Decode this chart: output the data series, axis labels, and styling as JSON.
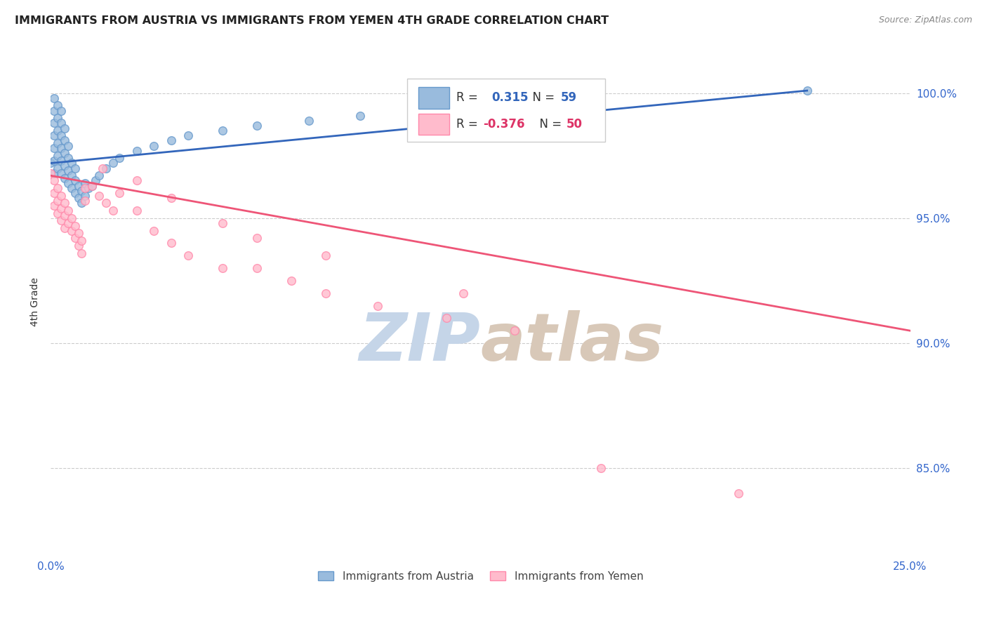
{
  "title": "IMMIGRANTS FROM AUSTRIA VS IMMIGRANTS FROM YEMEN 4TH GRADE CORRELATION CHART",
  "source": "Source: ZipAtlas.com",
  "ylabel": "4th Grade",
  "ytick_labels": [
    "85.0%",
    "90.0%",
    "95.0%",
    "100.0%"
  ],
  "ytick_values": [
    0.85,
    0.9,
    0.95,
    1.0
  ],
  "xlim": [
    0.0,
    0.25
  ],
  "ylim": [
    0.815,
    1.018
  ],
  "austria_scatter_x": [
    0.0,
    0.001,
    0.001,
    0.001,
    0.001,
    0.001,
    0.001,
    0.001,
    0.002,
    0.002,
    0.002,
    0.002,
    0.002,
    0.002,
    0.003,
    0.003,
    0.003,
    0.003,
    0.003,
    0.003,
    0.004,
    0.004,
    0.004,
    0.004,
    0.004,
    0.005,
    0.005,
    0.005,
    0.005,
    0.006,
    0.006,
    0.006,
    0.007,
    0.007,
    0.007,
    0.008,
    0.008,
    0.009,
    0.009,
    0.01,
    0.01,
    0.011,
    0.012,
    0.013,
    0.014,
    0.016,
    0.018,
    0.02,
    0.025,
    0.03,
    0.035,
    0.04,
    0.05,
    0.06,
    0.075,
    0.09,
    0.11,
    0.15,
    0.22
  ],
  "austria_scatter_y": [
    0.972,
    0.968,
    0.973,
    0.978,
    0.983,
    0.988,
    0.993,
    0.998,
    0.97,
    0.975,
    0.98,
    0.985,
    0.99,
    0.995,
    0.968,
    0.973,
    0.978,
    0.983,
    0.988,
    0.993,
    0.966,
    0.971,
    0.976,
    0.981,
    0.986,
    0.964,
    0.969,
    0.974,
    0.979,
    0.962,
    0.967,
    0.972,
    0.96,
    0.965,
    0.97,
    0.958,
    0.963,
    0.956,
    0.961,
    0.959,
    0.964,
    0.962,
    0.963,
    0.965,
    0.967,
    0.97,
    0.972,
    0.974,
    0.977,
    0.979,
    0.981,
    0.983,
    0.985,
    0.987,
    0.989,
    0.991,
    0.993,
    0.996,
    1.001
  ],
  "austria_line_x": [
    0.0,
    0.22
  ],
  "austria_line_y": [
    0.972,
    1.001
  ],
  "yemen_scatter_x": [
    0.0,
    0.001,
    0.001,
    0.001,
    0.002,
    0.002,
    0.002,
    0.003,
    0.003,
    0.003,
    0.004,
    0.004,
    0.004,
    0.005,
    0.005,
    0.006,
    0.006,
    0.007,
    0.007,
    0.008,
    0.008,
    0.009,
    0.009,
    0.01,
    0.01,
    0.012,
    0.014,
    0.016,
    0.018,
    0.02,
    0.025,
    0.03,
    0.035,
    0.04,
    0.05,
    0.06,
    0.07,
    0.08,
    0.095,
    0.115,
    0.135,
    0.015,
    0.025,
    0.035,
    0.05,
    0.06,
    0.08,
    0.12,
    0.16,
    0.2
  ],
  "yemen_scatter_y": [
    0.968,
    0.965,
    0.96,
    0.955,
    0.962,
    0.957,
    0.952,
    0.959,
    0.954,
    0.949,
    0.956,
    0.951,
    0.946,
    0.953,
    0.948,
    0.95,
    0.945,
    0.947,
    0.942,
    0.944,
    0.939,
    0.941,
    0.936,
    0.962,
    0.957,
    0.963,
    0.959,
    0.956,
    0.953,
    0.96,
    0.953,
    0.945,
    0.94,
    0.935,
    0.93,
    0.93,
    0.925,
    0.92,
    0.915,
    0.91,
    0.905,
    0.97,
    0.965,
    0.958,
    0.948,
    0.942,
    0.935,
    0.92,
    0.85,
    0.84
  ],
  "yemen_line_x": [
    0.0,
    0.25
  ],
  "yemen_line_y": [
    0.967,
    0.905
  ],
  "watermark_zip": "ZIP",
  "watermark_atlas": "atlas",
  "watermark_color_zip": "#c5d5e8",
  "watermark_color_atlas": "#d8c8b8",
  "background_color": "#ffffff",
  "scatter_size": 70,
  "austria_facecolor": "#99bbdd",
  "austria_edgecolor": "#6699cc",
  "yemen_facecolor": "#ffbbcc",
  "yemen_edgecolor": "#ff88aa",
  "trendline_austria_color": "#3366bb",
  "trendline_yemen_color": "#ee5577",
  "grid_color": "#cccccc",
  "title_fontsize": 11.5,
  "axis_label_color": "#3366cc",
  "right_tick_color": "#3366cc",
  "legend_R_austria_color": "#3366bb",
  "legend_N_austria_color": "#3366bb",
  "legend_R_yemen_color": "#dd3366",
  "legend_N_yemen_color": "#dd3366",
  "bottom_legend_color": "#444444",
  "xtick_labels": [
    "0.0%",
    "",
    "",
    "",
    "",
    "25.0%"
  ],
  "xtick_positions": [
    0.0,
    0.05,
    0.1,
    0.15,
    0.2,
    0.25
  ]
}
